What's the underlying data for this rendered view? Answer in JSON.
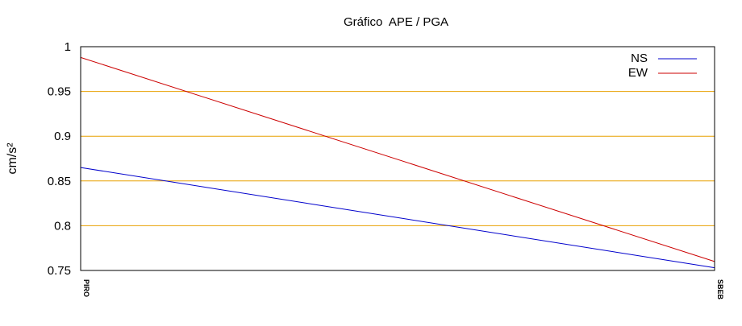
{
  "chart_data": {
    "type": "line",
    "title": "Gráfico  APE / PGA",
    "ylabel": "cm/s²",
    "xlabel": "",
    "categories": [
      "PIRO",
      "SBEB"
    ],
    "series": [
      {
        "name": "NS",
        "values": [
          0.865,
          0.753
        ],
        "color": "#0000cc"
      },
      {
        "name": "EW",
        "values": [
          0.988,
          0.76
        ],
        "color": "#cc0000"
      }
    ],
    "ylim": [
      0.75,
      1.0
    ],
    "yticks": [
      0.75,
      0.8,
      0.85,
      0.9,
      0.95,
      1
    ],
    "ytick_labels": [
      "0.75",
      "0.8",
      "0.85",
      "0.9",
      "0.95",
      "1"
    ],
    "grid": true,
    "grid_color": "#e8a000",
    "legend_position": "top-right"
  }
}
